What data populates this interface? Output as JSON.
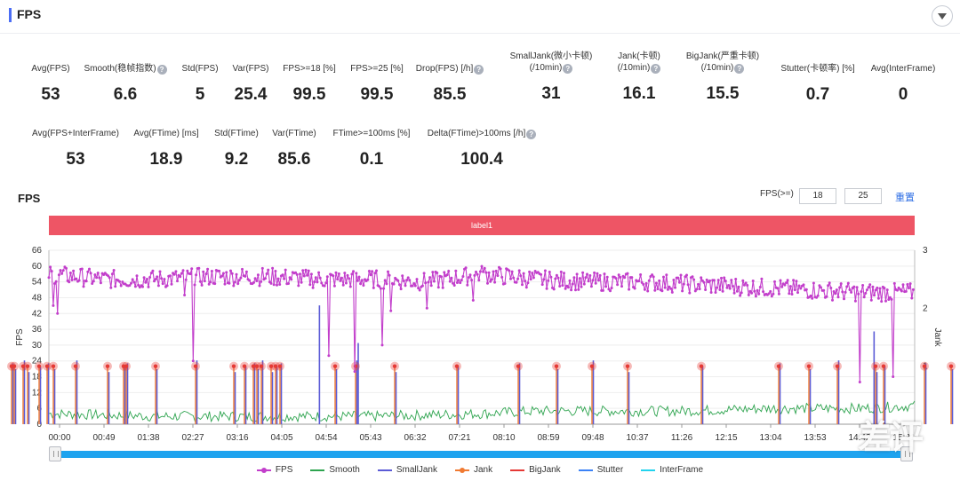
{
  "header": {
    "title": "FPS"
  },
  "metrics_row1": [
    {
      "label": "Avg(FPS)",
      "value": "53",
      "help": false
    },
    {
      "label": "Smooth(稳帧指数)",
      "value": "6.6",
      "help": true
    },
    {
      "label": "Std(FPS)",
      "value": "5",
      "help": false
    },
    {
      "label": "Var(FPS)",
      "value": "25.4",
      "help": false
    },
    {
      "label": "FPS>=18 [%]",
      "value": "99.5",
      "help": false
    },
    {
      "label": "FPS>=25 [%]",
      "value": "99.5",
      "help": false
    },
    {
      "label": "Drop(FPS) [/h]",
      "value": "85.5",
      "help": true
    },
    {
      "label": "SmallJank(微小卡顿)",
      "label2": "(/10min)",
      "value": "31",
      "help": true
    },
    {
      "label": "Jank(卡顿)",
      "label2": "(/10min)",
      "value": "16.1",
      "help": true
    },
    {
      "label": "BigJank(严重卡顿)",
      "label2": "(/10min)",
      "value": "15.5",
      "help": true
    },
    {
      "label": "Stutter(卡顿率) [%]",
      "value": "0.7",
      "help": false
    },
    {
      "label": "Avg(InterFrame)",
      "value": "0",
      "help": false
    }
  ],
  "metrics_row2": [
    {
      "label": "Avg(FPS+InterFrame)",
      "value": "53",
      "help": false
    },
    {
      "label": "Avg(FTime) [ms]",
      "value": "18.9",
      "help": false
    },
    {
      "label": "Std(FTime)",
      "value": "9.2",
      "help": false
    },
    {
      "label": "Var(FTime)",
      "value": "85.6",
      "help": false
    },
    {
      "label": "FTime>=100ms [%]",
      "value": "0.1",
      "help": false
    },
    {
      "label": "Delta(FTime)>100ms [/h]",
      "value": "100.4",
      "help": true
    }
  ],
  "chart_section": {
    "title": "FPS",
    "filter_label": "FPS(>=)",
    "filter_value_1": "18",
    "filter_value_2": "25",
    "reset_label": "重置",
    "band_label": "label1"
  },
  "watermark": "差评",
  "chart_data": {
    "type": "line",
    "ylabel": "FPS",
    "y2label": "Jank",
    "ylim": [
      0,
      66
    ],
    "y2lim": [
      0,
      3
    ],
    "yticks": [
      0,
      6,
      12,
      18,
      24,
      30,
      36,
      42,
      48,
      54,
      60,
      66
    ],
    "y2ticks": [
      1,
      2,
      3
    ],
    "xticks": [
      "00:00",
      "00:49",
      "01:38",
      "02:27",
      "03:16",
      "04:05",
      "04:54",
      "05:43",
      "06:32",
      "07:21",
      "08:10",
      "08:59",
      "09:48",
      "10:37",
      "11:26",
      "12:15",
      "13:04",
      "13:53",
      "14:42",
      "15:31"
    ],
    "duration_s": 960,
    "fps_level": [
      [
        0,
        57
      ],
      [
        60,
        55
      ],
      [
        120,
        55
      ],
      [
        180,
        56
      ],
      [
        240,
        56
      ],
      [
        300,
        55
      ],
      [
        360,
        55
      ],
      [
        420,
        54
      ],
      [
        480,
        57
      ],
      [
        540,
        55
      ],
      [
        600,
        54
      ],
      [
        660,
        54
      ],
      [
        720,
        53
      ],
      [
        780,
        52
      ],
      [
        840,
        51
      ],
      [
        900,
        50
      ],
      [
        960,
        50
      ]
    ],
    "fps_dips": [
      [
        5,
        45
      ],
      [
        10,
        42
      ],
      [
        150,
        49
      ],
      [
        160,
        24
      ],
      [
        310,
        26
      ],
      [
        340,
        20
      ],
      [
        370,
        30
      ],
      [
        380,
        43
      ],
      [
        420,
        44
      ],
      [
        470,
        47
      ],
      [
        740,
        50
      ],
      [
        900,
        16
      ],
      [
        936,
        18
      ]
    ],
    "smooth_level": [
      [
        0,
        4
      ],
      [
        120,
        3
      ],
      [
        240,
        3
      ],
      [
        360,
        3
      ],
      [
        480,
        4
      ],
      [
        540,
        5
      ],
      [
        600,
        5
      ],
      [
        700,
        5
      ],
      [
        800,
        6
      ],
      [
        900,
        6
      ],
      [
        960,
        7
      ]
    ],
    "jank_markers": [
      13,
      16,
      26,
      31,
      44,
      53,
      60,
      85,
      121,
      139,
      142,
      175,
      220,
      263,
      275,
      285,
      289,
      294,
      305,
      310,
      315,
      377,
      400,
      444,
      514,
      583,
      626,
      666,
      706,
      789,
      876,
      910,
      942,
      985,
      994,
      1040,
      1070,
      1110,
      1113,
      1123
    ]
  },
  "legend": [
    {
      "name": "FPS",
      "color": "#c23ecb",
      "marker": true
    },
    {
      "name": "Smooth",
      "color": "#2ea44f",
      "marker": false
    },
    {
      "name": "SmallJank",
      "color": "#5b5bd6",
      "marker": false
    },
    {
      "name": "Jank",
      "color": "#f07a32",
      "marker": true
    },
    {
      "name": "BigJank",
      "color": "#e53935",
      "marker": false
    },
    {
      "name": "Stutter",
      "color": "#3b82f6",
      "marker": false
    },
    {
      "name": "InterFrame",
      "color": "#22d3ee",
      "marker": false
    }
  ]
}
